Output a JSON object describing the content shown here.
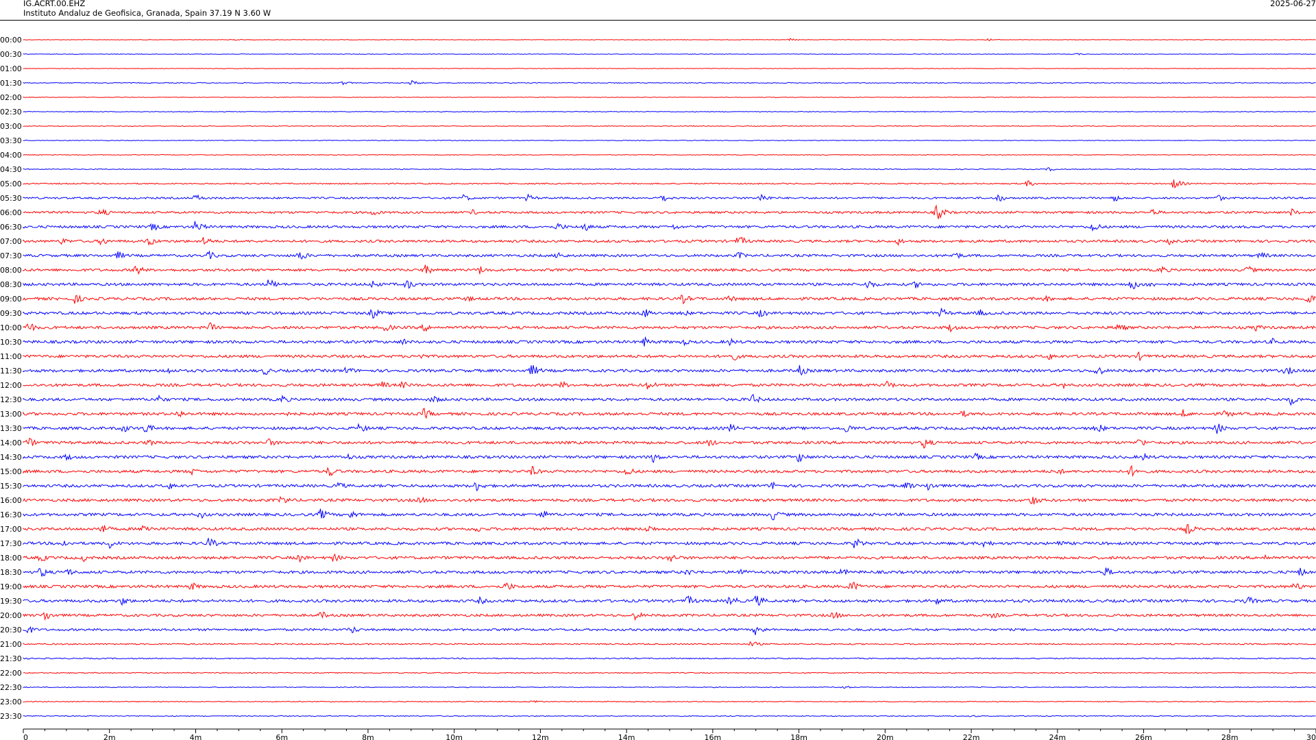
{
  "header": {
    "station": "IG.ACRT.00.EHZ",
    "description": "Instituto Andaluz de Geofisica, Granada, Spain  37.19 N 3.60 W",
    "date": "2025-06-27"
  },
  "colors": {
    "even_row": "#ff0000",
    "odd_row": "#0000ff",
    "axis": "#000000"
  },
  "chart_data": {
    "type": "helicorder",
    "title": "IG.ACRT.00.EHZ",
    "row_labels": [
      "00:00",
      "00:30",
      "01:00",
      "01:30",
      "02:00",
      "02:30",
      "03:00",
      "03:30",
      "04:00",
      "04:30",
      "05:00",
      "05:30",
      "06:00",
      "06:30",
      "07:00",
      "07:30",
      "08:00",
      "08:30",
      "09:00",
      "09:30",
      "10:00",
      "10:30",
      "11:00",
      "11:30",
      "12:00",
      "12:30",
      "13:00",
      "13:30",
      "14:00",
      "14:30",
      "15:00",
      "15:30",
      "16:00",
      "16:30",
      "17:00",
      "17:30",
      "18:00",
      "18:30",
      "19:00",
      "19:30",
      "20:00",
      "20:30",
      "21:00",
      "21:30",
      "22:00",
      "22:30",
      "23:00",
      "23:30"
    ],
    "row_noise_level": [
      0.4,
      0.4,
      0.4,
      0.6,
      0.4,
      0.5,
      0.5,
      0.5,
      0.5,
      0.6,
      0.9,
      1.3,
      1.6,
      1.8,
      1.8,
      1.8,
      1.8,
      1.9,
      2.0,
      2.0,
      2.0,
      2.0,
      2.0,
      2.0,
      2.0,
      2.0,
      2.0,
      2.0,
      2.0,
      2.0,
      2.0,
      2.0,
      2.0,
      2.0,
      2.0,
      2.0,
      2.0,
      2.0,
      2.0,
      2.0,
      1.8,
      1.6,
      1.0,
      0.8,
      0.7,
      0.6,
      0.6,
      0.6
    ],
    "x_ticks": [
      "0",
      "2m",
      "4m",
      "6m",
      "8m",
      "10m",
      "12m",
      "14m",
      "16m",
      "18m",
      "20m",
      "22m",
      "24m",
      "26m",
      "28m",
      "30"
    ],
    "x_range_minutes": [
      0,
      30
    ],
    "events": [
      {
        "row": 0,
        "minute": 4.8,
        "amp": 2
      },
      {
        "row": 0,
        "minute": 17.8,
        "amp": 2
      },
      {
        "row": 0,
        "minute": 22.4,
        "amp": 2
      },
      {
        "row": 1,
        "minute": 24.4,
        "amp": 2
      },
      {
        "row": 3,
        "minute": 7.4,
        "amp": 3
      },
      {
        "row": 3,
        "minute": 9.0,
        "amp": 4
      },
      {
        "row": 9,
        "minute": 23.8,
        "amp": 3
      },
      {
        "row": 10,
        "minute": 23.3,
        "amp": 5
      },
      {
        "row": 10,
        "minute": 26.7,
        "amp": 8
      },
      {
        "row": 11,
        "minute": 4.0,
        "amp": 6
      },
      {
        "row": 11,
        "minute": 10.2,
        "amp": 6
      },
      {
        "row": 11,
        "minute": 11.7,
        "amp": 6
      },
      {
        "row": 11,
        "minute": 14.8,
        "amp": 7
      },
      {
        "row": 11,
        "minute": 17.1,
        "amp": 8
      },
      {
        "row": 11,
        "minute": 22.6,
        "amp": 7
      },
      {
        "row": 11,
        "minute": 25.3,
        "amp": 6
      },
      {
        "row": 11,
        "minute": 27.7,
        "amp": 6
      },
      {
        "row": 12,
        "minute": 1.8,
        "amp": 7
      },
      {
        "row": 12,
        "minute": 8.1,
        "amp": 6
      },
      {
        "row": 12,
        "minute": 10.4,
        "amp": 5
      },
      {
        "row": 12,
        "minute": 21.2,
        "amp": 12
      },
      {
        "row": 12,
        "minute": 26.2,
        "amp": 6
      },
      {
        "row": 12,
        "minute": 29.4,
        "amp": 7
      },
      {
        "row": 13,
        "minute": 3.0,
        "amp": 7
      },
      {
        "row": 13,
        "minute": 4.0,
        "amp": 10
      },
      {
        "row": 13,
        "minute": 12.4,
        "amp": 7
      },
      {
        "row": 13,
        "minute": 13.0,
        "amp": 8
      },
      {
        "row": 13,
        "minute": 15.1,
        "amp": 5
      },
      {
        "row": 13,
        "minute": 24.8,
        "amp": 9
      },
      {
        "row": 14,
        "minute": 0.9,
        "amp": 6
      },
      {
        "row": 14,
        "minute": 1.8,
        "amp": 7
      },
      {
        "row": 14,
        "minute": 2.9,
        "amp": 8
      },
      {
        "row": 14,
        "minute": 4.2,
        "amp": 8
      },
      {
        "row": 14,
        "minute": 16.6,
        "amp": 9
      },
      {
        "row": 14,
        "minute": 20.3,
        "amp": 6
      },
      {
        "row": 14,
        "minute": 26.6,
        "amp": 5
      },
      {
        "row": 15,
        "minute": 2.2,
        "amp": 7
      },
      {
        "row": 15,
        "minute": 4.3,
        "amp": 7
      },
      {
        "row": 15,
        "minute": 6.4,
        "amp": 9
      },
      {
        "row": 15,
        "minute": 12.4,
        "amp": 7
      },
      {
        "row": 15,
        "minute": 16.6,
        "amp": 6
      },
      {
        "row": 15,
        "minute": 21.6,
        "amp": 7
      },
      {
        "row": 15,
        "minute": 28.7,
        "amp": 7
      },
      {
        "row": 16,
        "minute": 2.6,
        "amp": 9
      },
      {
        "row": 16,
        "minute": 9.3,
        "amp": 9
      },
      {
        "row": 16,
        "minute": 10.6,
        "amp": 7
      },
      {
        "row": 16,
        "minute": 26.4,
        "amp": 7
      },
      {
        "row": 16,
        "minute": 28.4,
        "amp": 7
      },
      {
        "row": 17,
        "minute": 5.7,
        "amp": 9
      },
      {
        "row": 17,
        "minute": 8.1,
        "amp": 7
      },
      {
        "row": 17,
        "minute": 8.9,
        "amp": 8
      },
      {
        "row": 17,
        "minute": 19.6,
        "amp": 8
      },
      {
        "row": 17,
        "minute": 20.7,
        "amp": 6
      },
      {
        "row": 17,
        "minute": 25.7,
        "amp": 10
      },
      {
        "row": 17,
        "minute": 26.1,
        "amp": 6
      },
      {
        "row": 18,
        "minute": 1.2,
        "amp": 8
      },
      {
        "row": 18,
        "minute": 10.3,
        "amp": 5
      },
      {
        "row": 18,
        "minute": 15.3,
        "amp": 8
      },
      {
        "row": 18,
        "minute": 16.4,
        "amp": 6
      },
      {
        "row": 18,
        "minute": 23.7,
        "amp": 6
      },
      {
        "row": 18,
        "minute": 29.8,
        "amp": 9
      },
      {
        "row": 19,
        "minute": 8.1,
        "amp": 9
      },
      {
        "row": 19,
        "minute": 14.4,
        "amp": 8
      },
      {
        "row": 19,
        "minute": 15.3,
        "amp": 6
      },
      {
        "row": 19,
        "minute": 17.1,
        "amp": 7
      },
      {
        "row": 19,
        "minute": 21.3,
        "amp": 8
      },
      {
        "row": 19,
        "minute": 22.2,
        "amp": 6
      },
      {
        "row": 20,
        "minute": 0.1,
        "amp": 9
      },
      {
        "row": 20,
        "minute": 4.3,
        "amp": 9
      },
      {
        "row": 20,
        "minute": 8.4,
        "amp": 7
      },
      {
        "row": 20,
        "minute": 9.3,
        "amp": 7
      },
      {
        "row": 20,
        "minute": 21.5,
        "amp": 7
      },
      {
        "row": 20,
        "minute": 25.4,
        "amp": 8
      },
      {
        "row": 20,
        "minute": 28.6,
        "amp": 6
      },
      {
        "row": 21,
        "minute": 8.8,
        "amp": 6
      },
      {
        "row": 21,
        "minute": 14.4,
        "amp": 8
      },
      {
        "row": 21,
        "minute": 15.3,
        "amp": 6
      },
      {
        "row": 21,
        "minute": 16.4,
        "amp": 6
      },
      {
        "row": 21,
        "minute": 29.0,
        "amp": 6
      },
      {
        "row": 22,
        "minute": 9.2,
        "amp": 6
      },
      {
        "row": 22,
        "minute": 16.4,
        "amp": 10
      },
      {
        "row": 22,
        "minute": 23.8,
        "amp": 6
      },
      {
        "row": 22,
        "minute": 25.9,
        "amp": 7
      },
      {
        "row": 23,
        "minute": 3.3,
        "amp": 7
      },
      {
        "row": 23,
        "minute": 5.6,
        "amp": 7
      },
      {
        "row": 23,
        "minute": 7.5,
        "amp": 7
      },
      {
        "row": 23,
        "minute": 11.8,
        "amp": 10
      },
      {
        "row": 23,
        "minute": 18.0,
        "amp": 9
      },
      {
        "row": 23,
        "minute": 24.9,
        "amp": 9
      },
      {
        "row": 23,
        "minute": 29.3,
        "amp": 8
      },
      {
        "row": 24,
        "minute": 8.3,
        "amp": 7
      },
      {
        "row": 24,
        "minute": 8.8,
        "amp": 6
      },
      {
        "row": 24,
        "minute": 12.5,
        "amp": 6
      },
      {
        "row": 24,
        "minute": 14.5,
        "amp": 8
      },
      {
        "row": 24,
        "minute": 20.0,
        "amp": 8
      },
      {
        "row": 24,
        "minute": 24.1,
        "amp": 6
      },
      {
        "row": 25,
        "minute": 3.1,
        "amp": 8
      },
      {
        "row": 25,
        "minute": 6.0,
        "amp": 7
      },
      {
        "row": 25,
        "minute": 9.5,
        "amp": 7
      },
      {
        "row": 25,
        "minute": 16.9,
        "amp": 9
      },
      {
        "row": 25,
        "minute": 29.4,
        "amp": 9
      },
      {
        "row": 26,
        "minute": 3.6,
        "amp": 7
      },
      {
        "row": 26,
        "minute": 6.0,
        "amp": 6
      },
      {
        "row": 26,
        "minute": 9.3,
        "amp": 9
      },
      {
        "row": 26,
        "minute": 21.8,
        "amp": 6
      },
      {
        "row": 26,
        "minute": 26.9,
        "amp": 7
      },
      {
        "row": 26,
        "minute": 27.9,
        "amp": 7
      },
      {
        "row": 27,
        "minute": 2.3,
        "amp": 8
      },
      {
        "row": 27,
        "minute": 2.8,
        "amp": 10
      },
      {
        "row": 27,
        "minute": 7.8,
        "amp": 8
      },
      {
        "row": 27,
        "minute": 16.4,
        "amp": 7
      },
      {
        "row": 27,
        "minute": 19.1,
        "amp": 8
      },
      {
        "row": 27,
        "minute": 24.9,
        "amp": 9
      },
      {
        "row": 27,
        "minute": 27.7,
        "amp": 9
      },
      {
        "row": 28,
        "minute": 0.1,
        "amp": 9
      },
      {
        "row": 28,
        "minute": 2.9,
        "amp": 6
      },
      {
        "row": 28,
        "minute": 5.7,
        "amp": 7
      },
      {
        "row": 28,
        "minute": 15.9,
        "amp": 7
      },
      {
        "row": 28,
        "minute": 20.9,
        "amp": 9
      },
      {
        "row": 28,
        "minute": 25.9,
        "amp": 8
      },
      {
        "row": 29,
        "minute": 1.0,
        "amp": 6
      },
      {
        "row": 29,
        "minute": 7.5,
        "amp": 6
      },
      {
        "row": 29,
        "minute": 14.6,
        "amp": 9
      },
      {
        "row": 29,
        "minute": 18.0,
        "amp": 9
      },
      {
        "row": 29,
        "minute": 22.1,
        "amp": 6
      },
      {
        "row": 29,
        "minute": 26.0,
        "amp": 6
      },
      {
        "row": 30,
        "minute": 3.9,
        "amp": 6
      },
      {
        "row": 30,
        "minute": 7.1,
        "amp": 9
      },
      {
        "row": 30,
        "minute": 11.8,
        "amp": 8
      },
      {
        "row": 30,
        "minute": 14.0,
        "amp": 8
      },
      {
        "row": 30,
        "minute": 24.0,
        "amp": 6
      },
      {
        "row": 30,
        "minute": 25.7,
        "amp": 9
      },
      {
        "row": 31,
        "minute": 3.4,
        "amp": 6
      },
      {
        "row": 31,
        "minute": 7.3,
        "amp": 7
      },
      {
        "row": 31,
        "minute": 10.5,
        "amp": 9
      },
      {
        "row": 31,
        "minute": 17.4,
        "amp": 7
      },
      {
        "row": 31,
        "minute": 20.5,
        "amp": 7
      },
      {
        "row": 31,
        "minute": 21.0,
        "amp": 8
      },
      {
        "row": 32,
        "minute": 6.0,
        "amp": 8
      },
      {
        "row": 32,
        "minute": 9.2,
        "amp": 6
      },
      {
        "row": 32,
        "minute": 23.4,
        "amp": 9
      },
      {
        "row": 33,
        "minute": 4.1,
        "amp": 7
      },
      {
        "row": 33,
        "minute": 6.9,
        "amp": 9
      },
      {
        "row": 33,
        "minute": 7.6,
        "amp": 7
      },
      {
        "row": 33,
        "minute": 12.0,
        "amp": 9
      },
      {
        "row": 33,
        "minute": 17.4,
        "amp": 9
      },
      {
        "row": 34,
        "minute": 1.8,
        "amp": 9
      },
      {
        "row": 34,
        "minute": 2.8,
        "amp": 9
      },
      {
        "row": 34,
        "minute": 10.5,
        "amp": 6
      },
      {
        "row": 34,
        "minute": 14.5,
        "amp": 7
      },
      {
        "row": 34,
        "minute": 27.0,
        "amp": 9
      },
      {
        "row": 35,
        "minute": 0.9,
        "amp": 7
      },
      {
        "row": 35,
        "minute": 2.0,
        "amp": 8
      },
      {
        "row": 35,
        "minute": 4.3,
        "amp": 9
      },
      {
        "row": 35,
        "minute": 19.3,
        "amp": 9
      },
      {
        "row": 35,
        "minute": 22.3,
        "amp": 7
      },
      {
        "row": 35,
        "minute": 24.0,
        "amp": 6
      },
      {
        "row": 36,
        "minute": 0.4,
        "amp": 7
      },
      {
        "row": 36,
        "minute": 1.4,
        "amp": 6
      },
      {
        "row": 36,
        "minute": 6.4,
        "amp": 7
      },
      {
        "row": 36,
        "minute": 7.2,
        "amp": 7
      },
      {
        "row": 36,
        "minute": 15.0,
        "amp": 8
      },
      {
        "row": 36,
        "minute": 28.8,
        "amp": 6
      },
      {
        "row": 37,
        "minute": 0.4,
        "amp": 9
      },
      {
        "row": 37,
        "minute": 1.0,
        "amp": 7
      },
      {
        "row": 37,
        "minute": 15.4,
        "amp": 6
      },
      {
        "row": 37,
        "minute": 16.6,
        "amp": 7
      },
      {
        "row": 37,
        "minute": 19.0,
        "amp": 6
      },
      {
        "row": 37,
        "minute": 25.1,
        "amp": 8
      },
      {
        "row": 37,
        "minute": 29.6,
        "amp": 8
      },
      {
        "row": 38,
        "minute": 3.9,
        "amp": 7
      },
      {
        "row": 38,
        "minute": 11.2,
        "amp": 8
      },
      {
        "row": 38,
        "minute": 19.2,
        "amp": 10
      },
      {
        "row": 38,
        "minute": 29.5,
        "amp": 8
      },
      {
        "row": 39,
        "minute": 2.3,
        "amp": 7
      },
      {
        "row": 39,
        "minute": 10.6,
        "amp": 6
      },
      {
        "row": 39,
        "minute": 15.4,
        "amp": 9
      },
      {
        "row": 39,
        "minute": 16.4,
        "amp": 9
      },
      {
        "row": 39,
        "minute": 17.0,
        "amp": 10
      },
      {
        "row": 39,
        "minute": 21.2,
        "amp": 6
      },
      {
        "row": 39,
        "minute": 28.4,
        "amp": 8
      },
      {
        "row": 40,
        "minute": 0.5,
        "amp": 9
      },
      {
        "row": 40,
        "minute": 6.9,
        "amp": 7
      },
      {
        "row": 40,
        "minute": 14.2,
        "amp": 7
      },
      {
        "row": 40,
        "minute": 18.8,
        "amp": 7
      },
      {
        "row": 40,
        "minute": 22.5,
        "amp": 5
      },
      {
        "row": 41,
        "minute": 0.1,
        "amp": 7
      },
      {
        "row": 41,
        "minute": 7.6,
        "amp": 7
      },
      {
        "row": 41,
        "minute": 17.0,
        "amp": 9
      },
      {
        "row": 42,
        "minute": 16.9,
        "amp": 5
      },
      {
        "row": 45,
        "minute": 19.0,
        "amp": 3
      },
      {
        "row": 46,
        "minute": 11.8,
        "amp": 3
      },
      {
        "row": 47,
        "minute": 22.0,
        "amp": 2
      }
    ]
  }
}
